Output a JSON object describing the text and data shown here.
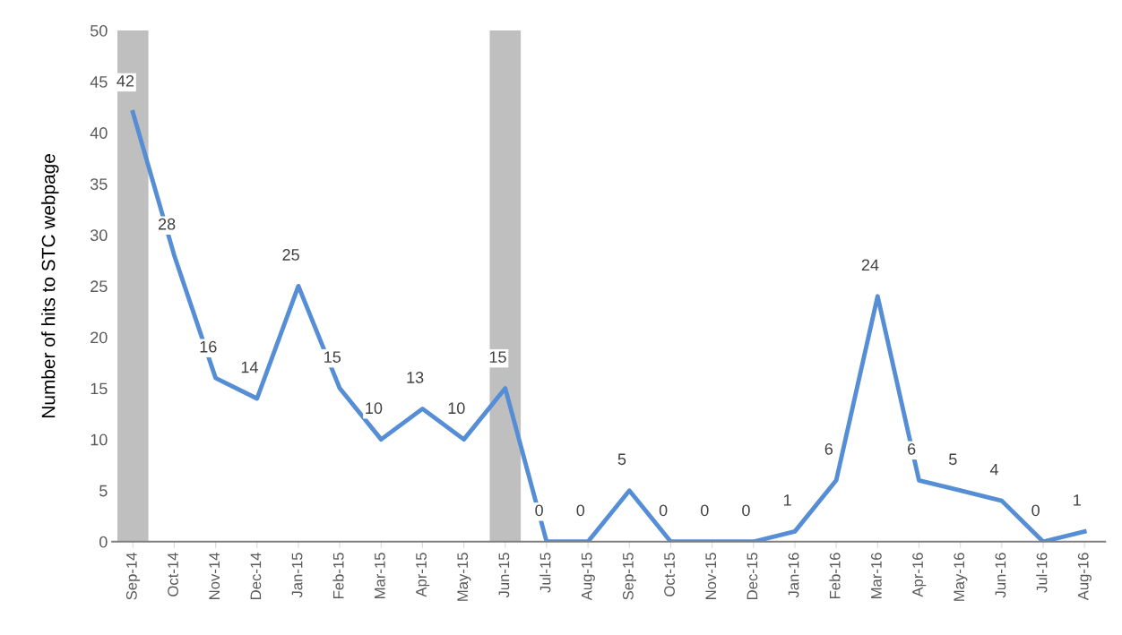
{
  "chart_data": {
    "type": "line",
    "ylabel": "Number of hits to STC webpage",
    "categories": [
      "Sep-14",
      "Oct-14",
      "Nov-14",
      "Dec-14",
      "Jan-15",
      "Feb-15",
      "Mar-15",
      "Apr-15",
      "May-15",
      "Jun-15",
      "Jul-15",
      "Aug-15",
      "Sep-15",
      "Oct-15",
      "Nov-15",
      "Dec-15",
      "Jan-16",
      "Feb-16",
      "Mar-16",
      "Apr-16",
      "May-16",
      "Jun-16",
      "Jul-16",
      "Aug-16"
    ],
    "series": [
      {
        "type": "bar",
        "color": "#bfbfbf",
        "values": [
          50,
          null,
          null,
          null,
          null,
          null,
          null,
          null,
          null,
          50,
          null,
          null,
          null,
          null,
          null,
          null,
          null,
          null,
          null,
          null,
          null,
          null,
          null,
          null
        ]
      },
      {
        "color": "#558ed5",
        "data_labels": true,
        "values": [
          42,
          28,
          16,
          14,
          25,
          15,
          10,
          13,
          10,
          15,
          0,
          0,
          5,
          0,
          0,
          0,
          1,
          6,
          24,
          6,
          5,
          4,
          0,
          1
        ]
      }
    ],
    "ylim": [
      0,
      50
    ],
    "yticks": [
      0,
      5,
      10,
      15,
      20,
      25,
      30,
      35,
      40,
      45,
      50
    ],
    "grid": false,
    "legend": false,
    "marker": "none",
    "line_style": "solid"
  }
}
